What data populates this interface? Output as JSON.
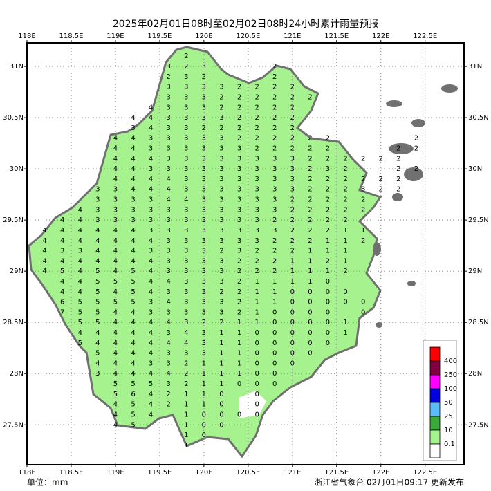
{
  "title": "2025年02月01日08时至02月02日08时24小时累计雨量预报",
  "map": {
    "xlim": [
      118,
      122.94
    ],
    "ylim": [
      27.11,
      31.23
    ],
    "xticks": [
      {
        "value": 118,
        "label": "118E"
      },
      {
        "value": 118.5,
        "label": "118.5E"
      },
      {
        "value": 119,
        "label": "119E"
      },
      {
        "value": 119.5,
        "label": "119.5E"
      },
      {
        "value": 120,
        "label": "120E"
      },
      {
        "value": 120.5,
        "label": "120.5E"
      },
      {
        "value": 121,
        "label": "121E"
      },
      {
        "value": 121.5,
        "label": "121.5E"
      },
      {
        "value": 122,
        "label": "122E"
      },
      {
        "value": 122.5,
        "label": "122.5E"
      }
    ],
    "yticks": [
      {
        "value": 31,
        "label": "31N"
      },
      {
        "value": 30.5,
        "label": "30.5N"
      },
      {
        "value": 30,
        "label": "30N"
      },
      {
        "value": 29.5,
        "label": "29.5N"
      },
      {
        "value": 29,
        "label": "29N"
      },
      {
        "value": 28.5,
        "label": "28.5N"
      },
      {
        "value": 28,
        "label": "28N"
      },
      {
        "value": 27.5,
        "label": "27.5N"
      }
    ],
    "grid": true
  },
  "rain": {
    "lons": [
      118.2,
      118.4,
      118.6,
      118.8,
      119,
      119.2,
      119.4,
      119.6,
      119.8,
      120,
      120.2,
      120.4,
      120.6,
      120.8,
      121,
      121.2,
      121.4,
      121.6,
      121.8,
      122,
      122.2,
      122.4
    ],
    "lats": [
      31.1,
      31,
      30.9,
      30.8,
      30.7,
      30.6,
      30.5,
      30.4,
      30.3,
      30.2,
      30.1,
      30,
      29.9,
      29.8,
      29.7,
      29.6,
      29.5,
      29.4,
      29.3,
      29.2,
      29.1,
      29,
      28.9,
      28.8,
      28.7,
      28.6,
      28.5,
      28.4,
      28.3,
      28.2,
      28.1,
      28,
      27.9,
      27.8,
      27.7,
      27.6,
      27.5,
      27.4,
      27.3
    ],
    "values": [
      [
        null,
        null,
        null,
        null,
        null,
        null,
        null,
        null,
        2,
        null,
        null,
        null,
        null,
        null,
        null,
        null,
        null,
        null,
        null,
        null,
        null,
        null
      ],
      [
        null,
        null,
        null,
        null,
        null,
        null,
        null,
        3,
        2,
        3,
        null,
        null,
        null,
        2,
        null,
        null,
        null,
        null,
        null,
        null,
        null,
        null
      ],
      [
        null,
        null,
        null,
        null,
        null,
        null,
        null,
        2,
        3,
        2,
        null,
        null,
        null,
        2,
        null,
        null,
        null,
        null,
        null,
        null,
        null,
        null
      ],
      [
        null,
        null,
        null,
        null,
        null,
        null,
        null,
        3,
        3,
        3,
        3,
        2,
        2,
        2,
        2,
        null,
        null,
        null,
        null,
        null,
        null,
        null
      ],
      [
        null,
        null,
        null,
        null,
        null,
        null,
        null,
        3,
        3,
        3,
        2,
        2,
        2,
        2,
        2,
        2,
        null,
        null,
        null,
        null,
        null,
        null
      ],
      [
        null,
        null,
        null,
        null,
        null,
        null,
        4,
        3,
        3,
        3,
        2,
        2,
        2,
        2,
        2,
        null,
        null,
        null,
        null,
        null,
        null,
        null
      ],
      [
        null,
        null,
        null,
        null,
        null,
        4,
        4,
        3,
        3,
        3,
        3,
        2,
        2,
        2,
        2,
        null,
        null,
        null,
        null,
        null,
        null,
        null
      ],
      [
        null,
        null,
        null,
        null,
        null,
        3,
        4,
        3,
        3,
        2,
        2,
        2,
        2,
        2,
        2,
        null,
        null,
        null,
        null,
        null,
        null,
        null
      ],
      [
        null,
        null,
        null,
        null,
        4,
        4,
        3,
        3,
        3,
        3,
        3,
        2,
        2,
        2,
        2,
        2,
        2,
        null,
        null,
        null,
        null,
        2
      ],
      [
        null,
        null,
        null,
        null,
        4,
        4,
        3,
        3,
        3,
        3,
        3,
        3,
        2,
        2,
        2,
        2,
        2,
        null,
        null,
        null,
        2,
        2
      ],
      [
        null,
        null,
        null,
        null,
        4,
        4,
        4,
        3,
        3,
        3,
        3,
        3,
        3,
        3,
        3,
        2,
        2,
        2,
        2,
        2,
        2,
        null
      ],
      [
        null,
        null,
        null,
        null,
        4,
        4,
        3,
        3,
        3,
        3,
        3,
        3,
        3,
        3,
        3,
        2,
        3,
        2,
        null,
        null,
        2,
        2
      ],
      [
        null,
        null,
        null,
        null,
        4,
        4,
        4,
        4,
        3,
        3,
        3,
        3,
        3,
        3,
        3,
        2,
        2,
        2,
        2,
        2,
        2,
        null
      ],
      [
        null,
        null,
        null,
        3,
        3,
        4,
        4,
        4,
        3,
        3,
        3,
        3,
        3,
        3,
        3,
        2,
        2,
        2,
        3,
        2,
        2,
        null
      ],
      [
        null,
        null,
        null,
        3,
        3,
        3,
        3,
        4,
        4,
        3,
        3,
        3,
        3,
        3,
        2,
        2,
        2,
        2,
        2,
        null,
        null,
        null
      ],
      [
        null,
        null,
        4,
        3,
        3,
        3,
        3,
        3,
        3,
        3,
        3,
        3,
        3,
        3,
        2,
        2,
        2,
        2,
        2,
        null,
        null,
        null
      ],
      [
        null,
        4,
        4,
        3,
        3,
        3,
        3,
        3,
        3,
        3,
        3,
        3,
        3,
        2,
        2,
        2,
        2,
        2,
        null,
        null,
        null,
        null
      ],
      [
        4,
        4,
        4,
        4,
        4,
        4,
        3,
        3,
        3,
        3,
        3,
        3,
        3,
        3,
        2,
        2,
        2,
        1,
        1,
        null,
        null,
        null
      ],
      [
        4,
        4,
        4,
        4,
        4,
        4,
        4,
        3,
        3,
        3,
        3,
        3,
        3,
        2,
        2,
        2,
        1,
        1,
        2,
        null,
        null,
        null
      ],
      [
        4,
        3,
        3,
        4,
        4,
        4,
        3,
        3,
        3,
        3,
        2,
        3,
        2,
        2,
        2,
        1,
        1,
        1,
        null,
        null,
        null,
        null
      ],
      [
        4,
        4,
        4,
        4,
        4,
        4,
        4,
        3,
        3,
        3,
        3,
        2,
        2,
        2,
        1,
        1,
        2,
        1,
        null,
        null,
        null,
        null
      ],
      [
        4,
        5,
        4,
        5,
        4,
        5,
        4,
        3,
        3,
        3,
        3,
        2,
        2,
        2,
        1,
        1,
        1,
        2,
        null,
        null,
        null,
        null
      ],
      [
        null,
        4,
        4,
        5,
        5,
        5,
        4,
        4,
        3,
        3,
        3,
        2,
        1,
        1,
        1,
        1,
        0,
        null,
        null,
        null,
        null,
        null
      ],
      [
        null,
        4,
        4,
        5,
        4,
        5,
        4,
        3,
        3,
        3,
        2,
        2,
        1,
        1,
        0,
        0,
        0,
        0,
        null,
        null,
        null,
        null
      ],
      [
        null,
        6,
        5,
        5,
        5,
        5,
        3,
        4,
        3,
        3,
        3,
        2,
        1,
        1,
        0,
        0,
        0,
        0,
        0,
        null,
        null,
        null
      ],
      [
        null,
        7,
        5,
        5,
        4,
        4,
        3,
        3,
        3,
        3,
        3,
        2,
        1,
        0,
        0,
        0,
        0,
        null,
        0,
        null,
        null,
        null
      ],
      [
        null,
        null,
        5,
        5,
        4,
        4,
        4,
        4,
        3,
        2,
        2,
        1,
        1,
        0,
        0,
        0,
        0,
        1,
        null,
        null,
        null,
        null
      ],
      [
        null,
        null,
        4,
        4,
        4,
        4,
        4,
        3,
        4,
        3,
        1,
        1,
        0,
        0,
        0,
        0,
        0,
        1,
        null,
        null,
        null,
        null
      ],
      [
        null,
        null,
        5,
        4,
        4,
        4,
        4,
        4,
        4,
        3,
        1,
        1,
        0,
        0,
        0,
        0,
        0,
        null,
        null,
        null,
        null,
        null
      ],
      [
        null,
        null,
        null,
        5,
        4,
        4,
        4,
        3,
        3,
        3,
        1,
        1,
        0,
        0,
        0,
        0,
        null,
        null,
        null,
        null,
        null,
        null
      ],
      [
        null,
        null,
        null,
        4,
        4,
        4,
        3,
        3,
        2,
        1,
        1,
        1,
        0,
        0,
        0,
        null,
        null,
        null,
        null,
        null,
        null,
        null
      ],
      [
        null,
        null,
        null,
        3,
        4,
        4,
        4,
        4,
        2,
        1,
        1,
        1,
        0,
        0,
        null,
        null,
        null,
        null,
        null,
        null,
        null,
        null
      ],
      [
        null,
        null,
        null,
        null,
        5,
        5,
        5,
        3,
        2,
        1,
        1,
        0,
        0,
        0,
        null,
        null,
        null,
        null,
        null,
        null,
        null,
        null
      ],
      [
        null,
        null,
        null,
        null,
        5,
        6,
        4,
        2,
        1,
        1,
        0,
        null,
        0,
        null,
        null,
        null,
        null,
        null,
        null,
        null,
        null,
        null
      ],
      [
        null,
        null,
        null,
        null,
        4,
        5,
        4,
        2,
        1,
        1,
        0,
        null,
        0,
        null,
        null,
        null,
        null,
        null,
        null,
        null,
        null,
        null
      ],
      [
        null,
        null,
        null,
        null,
        4,
        5,
        4,
        null,
        1,
        0,
        0,
        0,
        0,
        null,
        null,
        null,
        null,
        null,
        null,
        null,
        null,
        null
      ],
      [
        null,
        null,
        null,
        null,
        4,
        5,
        null,
        null,
        1,
        0,
        0,
        null,
        null,
        null,
        null,
        null,
        null,
        null,
        null,
        null,
        null,
        null
      ],
      [
        null,
        null,
        null,
        null,
        null,
        null,
        null,
        null,
        1,
        0,
        null,
        null,
        null,
        null,
        null,
        null,
        null,
        null,
        null,
        null,
        null,
        null
      ],
      [
        null,
        null,
        null,
        null,
        null,
        null,
        null,
        null,
        1,
        null,
        null,
        null,
        null,
        null,
        null,
        null,
        null,
        null,
        null,
        null,
        null,
        null
      ]
    ]
  },
  "legend": {
    "colors": [
      "#ff0000",
      "#800040",
      "#ff00ff",
      "#0000dd",
      "#5cbcf8",
      "#3aa83a",
      "#a6f28f",
      "#ffffff"
    ],
    "labels": [
      400,
      250,
      100,
      50,
      25,
      10,
      0.1
    ]
  },
  "footer": {
    "unit": "单位：mm",
    "source": "浙江省气象台 02月01日09:17 更新发布"
  }
}
